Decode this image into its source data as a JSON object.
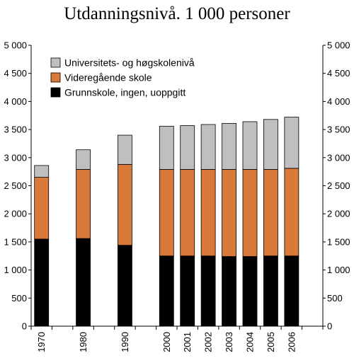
{
  "chart_data": {
    "type": "bar",
    "stacked": true,
    "title": "Utdanningsnivå. 1 000 personer",
    "xlabel": "",
    "ylabel": "",
    "ylim": [
      0,
      5000
    ],
    "yticks": [
      "0",
      "500",
      "1 000",
      "1 500",
      "2 000",
      "2 500",
      "3 000",
      "3 500",
      "4 000",
      "4 500",
      "5 000"
    ],
    "ytick_values": [
      0,
      500,
      1000,
      1500,
      2000,
      2500,
      3000,
      3500,
      4000,
      4500,
      5000
    ],
    "dual_y_axis": true,
    "grid": false,
    "legend_position": "top-left",
    "categories": [
      "1970",
      "1980",
      "1990",
      "2000",
      "2001",
      "2002",
      "2003",
      "2004",
      "2005",
      "2006"
    ],
    "category_slots": [
      1,
      3,
      5,
      7,
      8,
      9,
      10,
      11,
      12,
      13
    ],
    "series": [
      {
        "name": "Grunnskole, ingen, uoppgitt",
        "color": "#000000",
        "values": [
          1550,
          1560,
          1440,
          1250,
          1250,
          1250,
          1240,
          1240,
          1250,
          1250
        ]
      },
      {
        "name": "Videregående skole",
        "color": "#d9793a",
        "values": [
          1100,
          1230,
          1440,
          1540,
          1540,
          1540,
          1550,
          1550,
          1540,
          1560
        ]
      },
      {
        "name": "Universitets- og høgskolenivå",
        "color": "#bfbfbf",
        "values": [
          210,
          350,
          520,
          770,
          780,
          800,
          820,
          850,
          890,
          910
        ]
      }
    ],
    "legend_order": [
      2,
      1,
      0
    ]
  }
}
